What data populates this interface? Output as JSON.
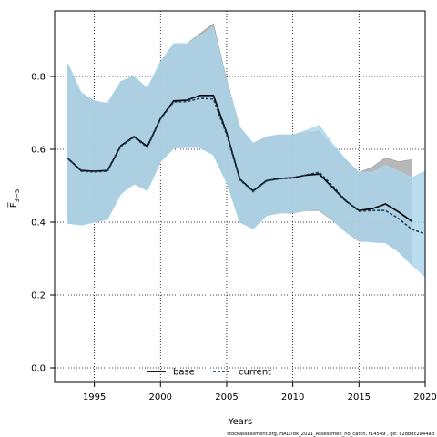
{
  "chart_data": {
    "type": "area",
    "xlabel": "Years",
    "ylabel": "F̅",
    "ylabel_subscript": "3−5",
    "xlim": [
      1992,
      2020
    ],
    "ylim": [
      -0.04,
      0.98
    ],
    "xticks": [
      1995,
      2000,
      2005,
      2010,
      2015,
      2020
    ],
    "yticks": [
      0.0,
      0.2,
      0.4,
      0.6,
      0.8
    ],
    "grid": true,
    "legend_position": "bottom-center",
    "series": [
      {
        "name": "base",
        "color": "#000000",
        "band_color": "#a6a6a6",
        "line_style": "solid",
        "x": [
          1993,
          1994,
          1995,
          1996,
          1997,
          1998,
          1999,
          2000,
          2001,
          2002,
          2003,
          2004,
          2005,
          2006,
          2007,
          2008,
          2009,
          2010,
          2011,
          2012,
          2013,
          2014,
          2015,
          2016,
          2017,
          2018,
          2019
        ],
        "median": [
          0.575,
          0.542,
          0.54,
          0.542,
          0.61,
          0.635,
          0.608,
          0.685,
          0.733,
          0.735,
          0.748,
          0.748,
          0.645,
          0.518,
          0.486,
          0.514,
          0.52,
          0.522,
          0.529,
          0.532,
          0.495,
          0.458,
          0.432,
          0.437,
          0.45,
          0.428,
          0.402
        ],
        "upper": [
          0.835,
          0.755,
          0.733,
          0.726,
          0.786,
          0.8,
          0.767,
          0.84,
          0.89,
          0.89,
          0.918,
          0.945,
          0.79,
          0.66,
          0.617,
          0.634,
          0.64,
          0.638,
          0.646,
          0.65,
          0.607,
          0.57,
          0.537,
          0.551,
          0.577,
          0.566,
          0.572
        ],
        "lower": [
          0.397,
          0.392,
          0.4,
          0.408,
          0.478,
          0.505,
          0.487,
          0.566,
          0.603,
          0.605,
          0.606,
          0.588,
          0.51,
          0.4,
          0.382,
          0.418,
          0.425,
          0.426,
          0.432,
          0.432,
          0.405,
          0.373,
          0.348,
          0.346,
          0.346,
          0.32,
          0.282
        ]
      },
      {
        "name": "current",
        "color": "#1b3f5e",
        "band_color": "#a9d6ec",
        "line_style": "dashed",
        "x": [
          1993,
          1994,
          1995,
          1996,
          1997,
          1998,
          1999,
          2000,
          2001,
          2002,
          2003,
          2004,
          2005,
          2006,
          2007,
          2008,
          2009,
          2010,
          2011,
          2012,
          2013,
          2014,
          2015,
          2016,
          2017,
          2018,
          2019,
          2020
        ],
        "median": [
          0.575,
          0.54,
          0.538,
          0.54,
          0.608,
          0.633,
          0.605,
          0.683,
          0.73,
          0.731,
          0.74,
          0.738,
          0.64,
          0.516,
          0.484,
          0.513,
          0.519,
          0.521,
          0.53,
          0.537,
          0.5,
          0.46,
          0.43,
          0.432,
          0.432,
          0.41,
          0.38,
          0.368
        ],
        "upper": [
          0.835,
          0.755,
          0.733,
          0.726,
          0.786,
          0.8,
          0.767,
          0.84,
          0.89,
          0.89,
          0.912,
          0.935,
          0.785,
          0.66,
          0.617,
          0.634,
          0.64,
          0.64,
          0.652,
          0.666,
          0.615,
          0.572,
          0.537,
          0.537,
          0.557,
          0.54,
          0.522,
          0.54
        ],
        "lower": [
          0.397,
          0.392,
          0.4,
          0.408,
          0.478,
          0.505,
          0.487,
          0.566,
          0.603,
          0.605,
          0.604,
          0.584,
          0.508,
          0.4,
          0.381,
          0.418,
          0.425,
          0.427,
          0.433,
          0.436,
          0.406,
          0.373,
          0.35,
          0.345,
          0.343,
          0.318,
          0.283,
          0.25
        ]
      }
    ]
  },
  "footer_note": "stockassessment.org, HAD7bk_2021_Assessmen_no_catch, r14549 , git: c28bdc2a44ad"
}
